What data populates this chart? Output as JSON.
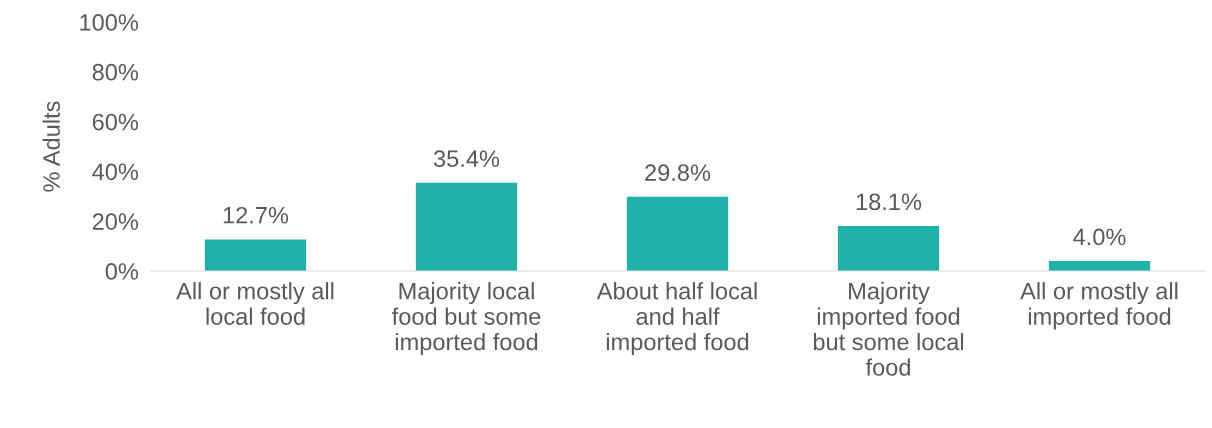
{
  "chart_data": {
    "type": "bar",
    "ylabel": "% Adults",
    "categories": [
      "All or mostly all\nlocal food",
      "Majority local\nfood but some\nimported food",
      "About half local\nand half\nimported food",
      "Majority\nimported food\nbut some local\nfood",
      "All or mostly all\nimported food"
    ],
    "values": [
      12.7,
      35.4,
      29.8,
      18.1,
      4.0
    ],
    "value_labels": [
      "12.7%",
      "35.4%",
      "29.8%",
      "18.1%",
      "4.0%"
    ],
    "color": "#20b2aa",
    "ylim": [
      0,
      100
    ],
    "yticks": [
      {
        "value": 0,
        "label": "0%"
      },
      {
        "value": 20,
        "label": "20%"
      },
      {
        "value": 40,
        "label": "40%"
      },
      {
        "value": 60,
        "label": "60%"
      },
      {
        "value": 80,
        "label": "80%"
      },
      {
        "value": 100,
        "label": "100%"
      }
    ],
    "grid": false
  }
}
